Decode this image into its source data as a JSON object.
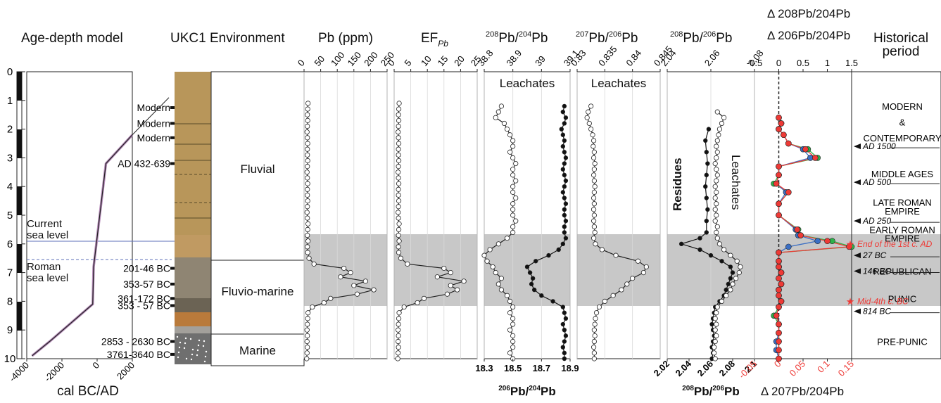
{
  "panel_titles": {
    "age_depth": "Age-depth model",
    "environment": "UKC1 Environment",
    "pb": "Pb (ppm)",
    "ef_main": "EF",
    "ef_sub": "Pb",
    "r84_mass_a": "208",
    "r84_mass_b": "204",
    "r76_mass_a": "207",
    "r76_mass_b": "206",
    "r86_mass_a": "208",
    "r86_mass_b": "206",
    "delta_green": "Δ 208Pb/204Pb",
    "delta_blue": "Δ 206Pb/204Pb",
    "delta_red": "Δ 207Pb/204Pb",
    "historical_1": "Historical",
    "historical_2": "period",
    "bottom_64": "206Pb/204Pb",
    "bottom_86": "208Pb/206Pb"
  },
  "depth_axis": {
    "ticks": [
      "0",
      "1",
      "2",
      "3",
      "4",
      "5",
      "6",
      "7",
      "8",
      "9",
      "10"
    ]
  },
  "age_depth": {
    "xlabel": "cal BC/AD",
    "x_ticks": [
      "-4000",
      "-2000",
      "0",
      "2000"
    ],
    "current_sea_level": "Current sea level",
    "current_sea_level_1": "Current",
    "current_sea_level_2": "sea level",
    "roman_sea_level_1": "Roman",
    "roman_sea_level_2": "sea level"
  },
  "dating_labels": [
    "Modern",
    "Modern",
    "Modern",
    "AD 432-639",
    "201-46 BC",
    "353-57 BC",
    "361-172 BC",
    "353 - 57 BC",
    "2853 - 2630 BC",
    "3761-3640 BC"
  ],
  "environments": [
    "Fluvial",
    "Fluvio-marine",
    "Marine"
  ],
  "leachates_label": "Leachates",
  "residues_label": "Residues",
  "historical": {
    "periods": [
      "MODERN",
      "&",
      "CONTEMPORARY",
      "MIDDLE AGES",
      "LATE ROMAN",
      "EMPIRE",
      "EARLY ROMAN",
      "EMPIRE",
      "REPUBLICAN",
      "PUNIC",
      "PRE-PUNIC"
    ],
    "markers": [
      "AD 1500",
      "AD 500",
      "AD 250",
      "End of the 1st c. AD",
      "27 BC",
      "146 BC",
      "Mid-4th c. BC",
      "814 BC"
    ]
  },
  "colors": {
    "gray_band": "#c8c8c8",
    "green": "#2db34a",
    "blue": "#3b6fc4",
    "red": "#ee3a36",
    "purple": "#5b3d99",
    "sea": "#5d6fb8"
  },
  "chart_data": [
    {
      "type": "line",
      "name": "age-depth model",
      "x_axis": "cal BC/AD",
      "y_axis": "depth (m)",
      "xlim": [
        -4000,
        2000
      ],
      "ylim": [
        10,
        0
      ],
      "points": [
        [
          2000,
          2.2
        ],
        [
          500,
          3.2
        ],
        [
          -200,
          6.8
        ],
        [
          -250,
          8.1
        ],
        [
          -2700,
          9.4
        ],
        [
          -3700,
          9.9
        ]
      ]
    },
    {
      "type": "line",
      "name": "Pb (ppm)",
      "xlim": [
        0,
        250
      ],
      "x_ticks": [
        "0",
        "50",
        "100",
        "150",
        "200",
        "250"
      ],
      "depth": [
        1.1,
        1.3,
        1.5,
        1.7,
        1.9,
        2.1,
        2.3,
        2.5,
        2.7,
        2.9,
        3.1,
        3.3,
        3.5,
        3.7,
        3.9,
        4.1,
        4.3,
        4.5,
        4.7,
        4.9,
        5.1,
        5.3,
        5.5,
        5.7,
        5.9,
        6.1,
        6.3,
        6.5,
        6.7,
        6.85,
        7.0,
        7.15,
        7.3,
        7.45,
        7.6,
        7.75,
        7.9,
        8.05,
        8.2,
        8.4,
        8.6,
        8.8,
        9.0,
        9.2,
        9.4,
        9.6,
        9.8,
        10.0
      ],
      "values": [
        12,
        11,
        10,
        11,
        10,
        9,
        10,
        11,
        10,
        10,
        11,
        10,
        9,
        10,
        11,
        10,
        10,
        11,
        10,
        9,
        10,
        12,
        11,
        10,
        12,
        10,
        11,
        15,
        30,
        120,
        140,
        110,
        185,
        150,
        210,
        160,
        80,
        60,
        25,
        12,
        11,
        10,
        9,
        10,
        9,
        10,
        9,
        8
      ]
    },
    {
      "type": "line",
      "name": "EF Pb",
      "xlim": [
        0,
        25
      ],
      "x_ticks": [
        "0",
        "5",
        "10",
        "15",
        "20",
        "25"
      ],
      "depth": [
        1.1,
        1.3,
        1.5,
        1.7,
        1.9,
        2.1,
        2.3,
        2.5,
        2.7,
        2.9,
        3.1,
        3.3,
        3.5,
        3.7,
        3.9,
        4.1,
        4.3,
        4.5,
        4.7,
        4.9,
        5.1,
        5.3,
        5.5,
        5.7,
        5.9,
        6.1,
        6.3,
        6.5,
        6.7,
        6.85,
        7.0,
        7.15,
        7.3,
        7.45,
        7.6,
        7.75,
        7.9,
        8.05,
        8.2,
        8.4,
        8.6,
        8.8,
        9.0,
        9.2,
        9.4,
        9.6,
        9.8,
        10.0
      ],
      "values": [
        1.5,
        1.4,
        1.3,
        1.4,
        1.3,
        1.2,
        1.3,
        1.4,
        1.3,
        1.3,
        1.4,
        1.3,
        1.2,
        1.3,
        1.4,
        1.3,
        1.3,
        1.4,
        1.3,
        1.2,
        1.3,
        1.5,
        1.4,
        1.3,
        1.5,
        1.3,
        1.4,
        2,
        4,
        15,
        17,
        13,
        21,
        17,
        19,
        16,
        9,
        7,
        3,
        1.5,
        1.4,
        1.3,
        1.2,
        1.3,
        1.2,
        1.3,
        1.2,
        1.1
      ]
    },
    {
      "type": "scatter",
      "name": "208Pb/204Pb vs 206Pb/204Pb",
      "xlim_top": [
        38.8,
        39.1
      ],
      "x_ticks_top": [
        "38.8",
        "38.9",
        "39",
        "39.1"
      ],
      "xlim_bottom": [
        18.3,
        18.9
      ],
      "x_ticks_bottom": [
        "18.3",
        "18.5",
        "18.7",
        "18.9"
      ],
      "leachates_206_204": {
        "depth": [
          1.2,
          1.4,
          1.6,
          1.8,
          2.0,
          2.2,
          2.4,
          2.6,
          2.8,
          3.0,
          3.2,
          3.4,
          3.6,
          3.8,
          4.0,
          4.2,
          4.4,
          4.6,
          4.8,
          5.0,
          5.2,
          5.4,
          5.6,
          5.8,
          6.0,
          6.2,
          6.4,
          6.6,
          6.8,
          7.0,
          7.2,
          7.4,
          7.6,
          7.8,
          8.0,
          8.2,
          8.4,
          8.6,
          8.8,
          9.0,
          9.2,
          9.4,
          9.6,
          9.8,
          10.0
        ],
        "values": [
          18.86,
          18.85,
          18.87,
          18.86,
          18.84,
          18.85,
          18.86,
          18.85,
          18.86,
          18.87,
          18.86,
          18.85,
          18.86,
          18.87,
          18.86,
          18.85,
          18.86,
          18.87,
          18.86,
          18.86,
          18.87,
          18.86,
          18.86,
          18.87,
          18.85,
          18.82,
          18.75,
          18.66,
          18.6,
          18.62,
          18.64,
          18.63,
          18.65,
          18.7,
          18.78,
          18.85,
          18.86,
          18.87,
          18.85,
          18.86,
          18.87,
          18.86,
          18.85,
          18.86,
          18.86
        ]
      },
      "leachates_208_204": {
        "depth": [
          1.2,
          1.4,
          1.6,
          1.8,
          2.0,
          2.2,
          2.4,
          2.6,
          2.8,
          3.0,
          3.2,
          3.4,
          3.6,
          3.8,
          4.0,
          4.2,
          4.4,
          4.6,
          4.8,
          5.0,
          5.2,
          5.4,
          5.6,
          5.8,
          6.0,
          6.2,
          6.4,
          6.6,
          6.8,
          7.0,
          7.2,
          7.4,
          7.6,
          7.8,
          8.0,
          8.2,
          8.4,
          8.6,
          8.8,
          9.0,
          9.2,
          9.4,
          9.6,
          9.8,
          10.0
        ],
        "values": [
          38.86,
          38.85,
          38.84,
          38.87,
          38.88,
          38.89,
          38.9,
          38.9,
          38.89,
          38.9,
          38.91,
          38.9,
          38.9,
          38.91,
          38.9,
          38.9,
          38.91,
          38.9,
          38.9,
          38.9,
          38.91,
          38.9,
          38.9,
          38.88,
          38.85,
          38.82,
          38.8,
          38.81,
          38.83,
          38.84,
          38.86,
          38.85,
          38.86,
          38.88,
          38.89,
          38.9,
          38.89,
          38.9,
          38.9,
          38.89,
          38.9,
          38.9,
          38.9,
          38.89,
          38.9
        ]
      }
    },
    {
      "type": "line",
      "name": "207Pb/206Pb leachates",
      "xlim": [
        0.83,
        0.845
      ],
      "x_ticks": [
        "0.83",
        "0.835",
        "0.84",
        "0.845"
      ],
      "depth": [
        1.2,
        1.4,
        1.6,
        1.8,
        2.0,
        2.2,
        2.4,
        2.6,
        2.8,
        3.0,
        3.2,
        3.4,
        3.6,
        3.8,
        4.0,
        4.2,
        4.4,
        4.6,
        4.8,
        5.0,
        5.2,
        5.4,
        5.6,
        5.8,
        6.0,
        6.2,
        6.4,
        6.6,
        6.8,
        7.0,
        7.2,
        7.4,
        7.6,
        7.8,
        8.0,
        8.2,
        8.4,
        8.6,
        8.8,
        9.0,
        9.2,
        9.4,
        9.6,
        9.8,
        10.0
      ],
      "values": [
        0.8325,
        0.832,
        0.8318,
        0.8322,
        0.8325,
        0.8328,
        0.833,
        0.8329,
        0.8331,
        0.833,
        0.8332,
        0.8331,
        0.833,
        0.8331,
        0.8332,
        0.8331,
        0.833,
        0.8331,
        0.833,
        0.8331,
        0.833,
        0.8331,
        0.8332,
        0.833,
        0.8333,
        0.8345,
        0.837,
        0.841,
        0.8425,
        0.842,
        0.84,
        0.839,
        0.838,
        0.8365,
        0.835,
        0.834,
        0.8335,
        0.8333,
        0.8332,
        0.8331,
        0.8332,
        0.8331,
        0.833,
        0.8331,
        0.8331
      ]
    },
    {
      "type": "line",
      "name": "208Pb/206Pb",
      "xlim": [
        2.04,
        2.08
      ],
      "x_ticks": [
        "2.04",
        "2.06",
        "2.08"
      ],
      "xlim_bottom": [
        2.02,
        2.1
      ],
      "x_ticks_bottom": [
        "2.02",
        "2.04",
        "2.06",
        "2.08",
        "2.1"
      ],
      "leachates": {
        "depth": [
          1.4,
          1.6,
          1.8,
          2.0,
          2.2,
          2.4,
          2.6,
          2.8,
          3.0,
          3.2,
          3.4,
          3.6,
          3.8,
          4.0,
          4.2,
          4.4,
          4.6,
          4.8,
          5.0,
          5.2,
          5.4,
          5.6,
          5.8,
          6.0,
          6.2,
          6.4,
          6.6,
          6.8,
          7.0,
          7.2,
          7.4,
          7.6,
          7.8,
          8.0,
          8.2,
          8.4,
          8.6,
          8.8,
          9.0,
          9.2,
          9.4,
          9.6,
          9.8,
          10.0
        ],
        "values": [
          2.066,
          2.072,
          2.07,
          2.068,
          2.067,
          2.066,
          2.065,
          2.066,
          2.065,
          2.064,
          2.065,
          2.066,
          2.065,
          2.064,
          2.065,
          2.064,
          2.065,
          2.064,
          2.065,
          2.064,
          2.066,
          2.065,
          2.066,
          2.068,
          2.072,
          2.078,
          2.084,
          2.087,
          2.086,
          2.083,
          2.08,
          2.078,
          2.074,
          2.07,
          2.066,
          2.065,
          2.064,
          2.065,
          2.064,
          2.065,
          2.064,
          2.063,
          2.063,
          2.064
        ]
      },
      "residues": {
        "depth": [
          2.0,
          2.4,
          2.8,
          3.2,
          3.6,
          4.0,
          4.4,
          4.8,
          5.2,
          5.6,
          5.8,
          6.0,
          6.2,
          6.4,
          6.6,
          6.8,
          7.0,
          7.2,
          7.4,
          7.6,
          7.8,
          8.0,
          8.2,
          8.4,
          8.6,
          8.8,
          9.0,
          9.2,
          9.4,
          9.6,
          9.8,
          10.0
        ],
        "values": [
          2.058,
          2.055,
          2.056,
          2.057,
          2.056,
          2.055,
          2.056,
          2.057,
          2.056,
          2.056,
          2.05,
          2.033,
          2.05,
          2.06,
          2.07,
          2.078,
          2.08,
          2.078,
          2.076,
          2.074,
          2.072,
          2.068,
          2.064,
          2.063,
          2.062,
          2.061,
          2.062,
          2.063,
          2.062,
          2.061,
          2.062,
          2.061
        ]
      }
    },
    {
      "type": "line",
      "name": "Delta ratios",
      "xlim_top": [
        -0.5,
        1.5
      ],
      "x_ticks_top": [
        "-0.5",
        "0",
        "0.5",
        "1",
        "1.5"
      ],
      "xlim_bottom": [
        -0.05,
        0.15
      ],
      "x_ticks_bottom": [
        "-0.05",
        "0",
        "0.05",
        "0.1",
        "0.15"
      ],
      "depth": [
        1.6,
        1.8,
        2.0,
        2.2,
        2.5,
        2.7,
        3.0,
        3.3,
        3.6,
        3.9,
        4.2,
        4.6,
        5.0,
        5.5,
        5.7,
        5.9,
        6.1,
        6.3,
        6.6,
        6.8,
        7.0,
        7.2,
        7.4,
        7.6,
        7.8,
        8.0,
        8.2,
        8.5,
        8.8,
        9.1,
        9.4,
        9.7,
        10.0
      ],
      "series": [
        {
          "name": "Δ 208Pb/204Pb",
          "values": [
            0.0,
            0.05,
            0.0,
            0.1,
            0.2,
            0.6,
            0.8,
            0.0,
            0.0,
            -0.1,
            0.2,
            0.0,
            0.0,
            0.4,
            0.45,
            1.1,
            1.5,
            0.0,
            0.0,
            0.0,
            0.05,
            0.0,
            0.05,
            0.0,
            0.0,
            0.05,
            0.0,
            -0.1,
            0.0,
            0.0,
            0.0,
            0.0,
            0.0
          ]
        },
        {
          "name": "Δ 206Pb/204Pb",
          "values": [
            0.0,
            0.05,
            0.0,
            0.1,
            0.2,
            0.5,
            0.65,
            0.0,
            0.0,
            -0.05,
            0.15,
            0.0,
            0.0,
            0.35,
            0.4,
            0.8,
            0.2,
            0.0,
            0.0,
            0.0,
            0.05,
            0.0,
            0.05,
            0.0,
            0.0,
            0.05,
            0.0,
            -0.05,
            0.0,
            0.0,
            -0.05,
            -0.05,
            0.0
          ]
        },
        {
          "name": "Δ 207Pb/204Pb",
          "values": [
            0.0,
            0.05,
            0.0,
            0.1,
            0.2,
            0.55,
            0.75,
            0.0,
            0.0,
            -0.05,
            0.2,
            0.0,
            0.0,
            0.38,
            0.45,
            1.0,
            1.45,
            0.0,
            0.0,
            0.0,
            0.05,
            0.0,
            0.05,
            0.0,
            0.0,
            0.05,
            0.0,
            -0.05,
            0.0,
            0.0,
            0.0,
            0.0,
            0.0
          ]
        }
      ]
    }
  ]
}
